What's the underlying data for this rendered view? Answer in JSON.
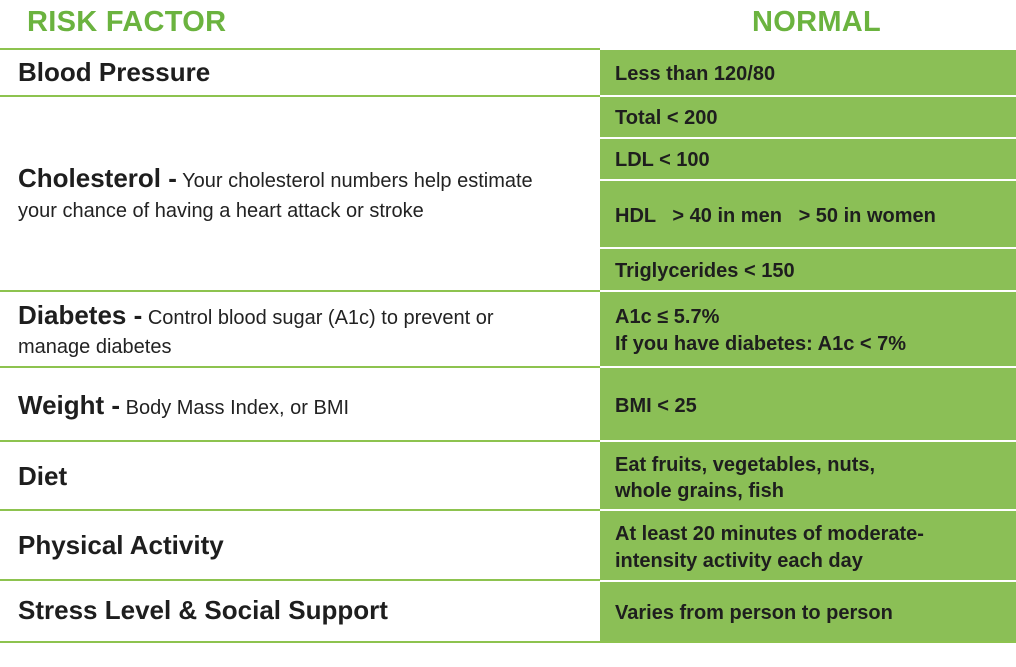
{
  "header": {
    "risk_factor": "RISK FACTOR",
    "normal": "NORMAL"
  },
  "rows": {
    "blood_pressure": {
      "title": "Blood Pressure",
      "normal": "Less than 120/80"
    },
    "cholesterol": {
      "title": "Cholesterol -",
      "desc": " Your cholesterol numbers help estimate",
      "desc2": "your chance of having a heart attack or stroke",
      "total": "Total < 200",
      "ldl": "LDL < 100",
      "hdl": "HDL   > 40 in men   > 50 in women",
      "trig": "Triglycerides < 150"
    },
    "diabetes": {
      "title": "Diabetes -",
      "desc": " Control blood sugar (A1c) to prevent or",
      "desc2": "manage diabetes",
      "normal1": "A1c ≤ 5.7%",
      "normal2": "If you have diabetes: A1c < 7%"
    },
    "weight": {
      "title": "Weight -",
      "desc": " Body Mass Index, or BMI",
      "normal": "BMI < 25"
    },
    "diet": {
      "title": "Diet",
      "normal1": "Eat fruits, vegetables, nuts,",
      "normal2": "whole grains, fish"
    },
    "physical": {
      "title": "Physical Activity",
      "normal1": "At least 20 minutes of moderate-",
      "normal2": "intensity activity each day"
    },
    "stress": {
      "title": "Stress Level & Social Support",
      "normal": "Varies from person to person"
    }
  },
  "colors": {
    "accent_green": "#6bb33f",
    "cell_green": "#8bbf56",
    "rule_green": "#8dc34f"
  }
}
